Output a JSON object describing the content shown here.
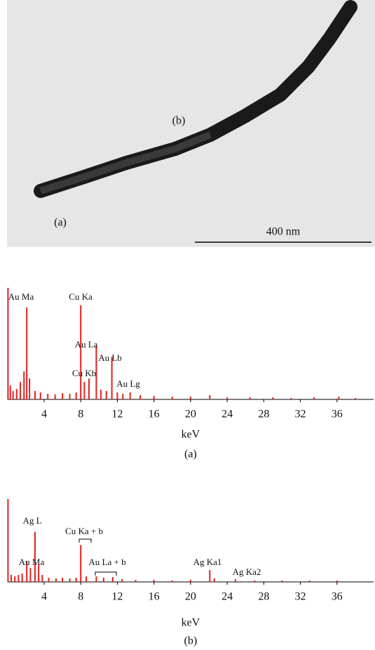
{
  "micrograph": {
    "labels": [
      "(b)",
      "(a)"
    ],
    "scale_bar": "400 nm"
  },
  "chart_data": [
    {
      "type": "spectrum",
      "color": "#e0201f",
      "xlim": [
        0,
        40
      ],
      "ylim": [
        0,
        160
      ],
      "xticks": [
        4,
        8,
        12,
        16,
        20,
        24,
        28,
        32,
        36
      ],
      "x_label": "keV",
      "caption": "(a)",
      "annotations": [
        "Au Ma",
        "Cu Ka",
        "Au La",
        "Au Lb",
        "Cu Kb",
        "Au Lg"
      ],
      "x": [
        0.05,
        0.3,
        0.6,
        1.0,
        1.4,
        1.8,
        2.1,
        2.4,
        3.0,
        3.6,
        4.4,
        5.2,
        6.0,
        6.8,
        7.5,
        8.0,
        8.4,
        8.9,
        9.7,
        10.2,
        10.8,
        11.4,
        12.0,
        12.6,
        13.4,
        14.5,
        16.0,
        18.0,
        20.0,
        22.1,
        24.0,
        26.5,
        29.0,
        31.0,
        33.5,
        36.2,
        38.0
      ],
      "values": [
        160,
        20,
        12,
        15,
        25,
        40,
        132,
        30,
        12,
        10,
        8,
        7,
        9,
        8,
        10,
        135,
        25,
        30,
        77,
        14,
        12,
        61,
        10,
        8,
        10,
        6,
        5,
        4,
        4,
        6,
        3,
        3,
        3,
        2,
        3,
        4,
        2
      ]
    },
    {
      "type": "spectrum",
      "color": "#e0201f",
      "xlim": [
        0,
        40
      ],
      "ylim": [
        0,
        120
      ],
      "xticks": [
        4,
        8,
        12,
        16,
        20,
        24,
        28,
        32,
        36
      ],
      "x_label": "keV",
      "caption": "(b)",
      "annotations": [
        "Ag L",
        "Cu Ka + b",
        "Au Ma",
        "Au La + b",
        "Ag Ka1",
        "Ag Ka2"
      ],
      "x": [
        0.05,
        0.4,
        0.8,
        1.2,
        1.6,
        2.1,
        2.5,
        3.0,
        3.4,
        3.8,
        4.5,
        5.3,
        6.0,
        6.8,
        7.5,
        8.0,
        8.6,
        9.7,
        10.5,
        11.5,
        12.5,
        14.0,
        16.0,
        18.0,
        20.0,
        22.1,
        22.6,
        24.9,
        27.0,
        30.0,
        33.0,
        36.0
      ],
      "values": [
        119,
        10,
        8,
        10,
        12,
        30,
        20,
        72,
        25,
        10,
        6,
        5,
        6,
        5,
        6,
        53,
        8,
        8,
        6,
        7,
        4,
        3,
        3,
        2,
        3,
        17,
        5,
        4,
        2,
        2,
        2,
        2
      ]
    }
  ]
}
